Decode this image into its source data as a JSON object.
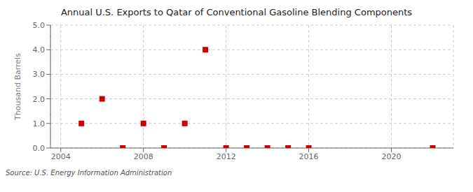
{
  "chart_data": {
    "type": "scatter",
    "title": "Annual U.S. Exports to Qatar of Conventional Gasoline Blending Components",
    "y_label": "Thousand Barrels",
    "annotations": [
      "Source: U.S. Energy Information Administration"
    ],
    "x": [
      2005,
      2006,
      2007,
      2008,
      2009,
      2010,
      2011,
      2012,
      2013,
      2014,
      2015,
      2016,
      2022
    ],
    "values": [
      1.0,
      2.0,
      0.0,
      1.0,
      0.0,
      1.0,
      4.0,
      0.0,
      0.0,
      0.0,
      0.0,
      0.0,
      0.0
    ],
    "color": "#cc0000",
    "marker": "square",
    "xlim": [
      2003.5,
      2023.0
    ],
    "ylim": [
      0.0,
      5.0
    ],
    "xticks": [
      2004,
      2008,
      2012,
      2016,
      2020
    ],
    "yticks": [
      {
        "value": 0,
        "label": "0.0"
      },
      {
        "value": 1,
        "label": "1.0"
      },
      {
        "value": 2,
        "label": "2.0"
      },
      {
        "value": 3,
        "label": "3.0"
      },
      {
        "value": 4,
        "label": "4.0"
      },
      {
        "value": 5,
        "label": "5.0"
      }
    ],
    "grid": true
  }
}
